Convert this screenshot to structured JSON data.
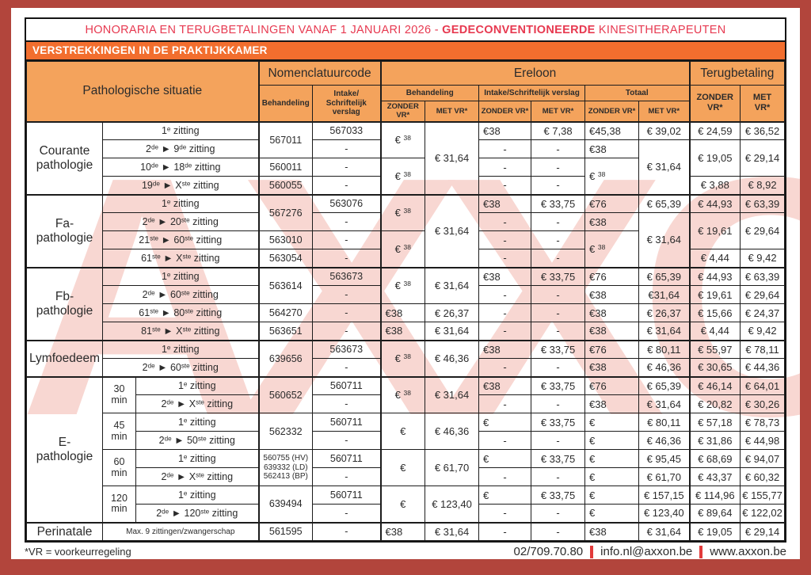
{
  "title": {
    "prefix": "HONORARIA EN TERUGBETALINGEN VANAF 1 JANUARI 2026 - ",
    "highlight": "GEDECONVENTIONEERDE",
    "suffix": " KINESITHERAPEUTEN"
  },
  "banner": "VERSTREKKINGEN IN DE PRAKTIJKKAMER",
  "watermark": "AXXON",
  "colors": {
    "frame_red": "#b2453c",
    "title_red": "#e73950",
    "banner_orange": "#f26e2e",
    "header_orange": "#f4a35c",
    "separator_red": "#e23a3a",
    "watermark_pink": "#f8d7d2"
  },
  "header": {
    "pathologie": "Pathologische situatie",
    "nomenclatuurcode": "Nomenclatuurcode",
    "ereloon": "Ereloon",
    "terugbetaling": "Terugbetaling",
    "behandeling": "Behandeling",
    "intake_two_line": "Intake/\nSchriftelijk verslag",
    "intake_one_line": "Intake/Schriftelijk verslag",
    "totaal": "Totaal",
    "zonder_vr": "ZONDER VR*",
    "met_vr": "MET VR*",
    "zonder_vr_stack": "ZONDER\nVR*",
    "met_vr_stack": "MET\nVR*"
  },
  "sections": [
    {
      "name": "Courante pathologie",
      "rows": [
        [
          {
            "t": "Courante\npathologie",
            "rs": 4,
            "cls": "group"
          },
          {
            "t": "1{e} zitting",
            "cs": 2,
            "cls": "zit"
          },
          {
            "t": "567011",
            "rs": 2,
            "cls": "code"
          },
          {
            "t": "567033",
            "cls": "code"
          },
          {
            "t": "€ {38}",
            "rs": 2
          },
          {
            "t": "€ 31,64",
            "rs": 4
          },
          {
            "t": "€38",
            "a": "l"
          },
          {
            "t": "€ 7,38"
          },
          {
            "t": "€45,38",
            "a": "l"
          },
          {
            "t": "€ 39,02"
          },
          {
            "t": "€ 24,59"
          },
          {
            "t": "€ 36,52"
          }
        ],
        [
          {
            "t": "2{de} ► 9{de} zitting",
            "cs": 2,
            "cls": "zit"
          },
          {
            "t": "-",
            "cls": "code"
          },
          {
            "t": "-"
          },
          {
            "t": "-"
          },
          {
            "t": "€38",
            "a": "l"
          },
          {
            "t": "€ 31,64",
            "rs": 3
          },
          {
            "t": "€ 19,05",
            "rs": 2
          },
          {
            "t": "€ 29,14",
            "rs": 2
          }
        ],
        [
          {
            "t": "10{de} ► 18{de} zitting",
            "cs": 2,
            "cls": "zit"
          },
          {
            "t": "560011",
            "cls": "code"
          },
          {
            "t": "-",
            "cls": "code"
          },
          {
            "t": "€ {38}",
            "rs": 2
          },
          {
            "t": "-"
          },
          {
            "t": "-"
          },
          {
            "t": "€ {38}",
            "rs": 2,
            "a": "l"
          }
        ],
        [
          {
            "t": "19{de} ► X{ste} zitting",
            "cs": 2,
            "cls": "zit"
          },
          {
            "t": "560055",
            "cls": "code"
          },
          {
            "t": "-",
            "cls": "code"
          },
          {
            "t": "-"
          },
          {
            "t": "-"
          },
          {
            "t": "€ 3,88"
          },
          {
            "t": "€ 8,92"
          }
        ]
      ]
    },
    {
      "name": "Fa-pathologie",
      "rows": [
        [
          {
            "t": "Fa-\npathologie",
            "rs": 4,
            "cls": "group"
          },
          {
            "t": "1{e} zitting",
            "cs": 2,
            "cls": "zit"
          },
          {
            "t": "567276",
            "rs": 2,
            "cls": "code"
          },
          {
            "t": "563076",
            "cls": "code"
          },
          {
            "t": "€ {38}",
            "rs": 2
          },
          {
            "t": "€ 31,64",
            "rs": 4
          },
          {
            "t": "€38",
            "a": "l"
          },
          {
            "t": "€ 33,75"
          },
          {
            "t": "€76",
            "a": "l"
          },
          {
            "t": "€ 65,39"
          },
          {
            "t": "€ 44,93"
          },
          {
            "t": "€ 63,39"
          }
        ],
        [
          {
            "t": "2{de} ► 20{ste} zitting",
            "cs": 2,
            "cls": "zit"
          },
          {
            "t": "-",
            "cls": "code"
          },
          {
            "t": "-"
          },
          {
            "t": "-"
          },
          {
            "t": "€38",
            "a": "l"
          },
          {
            "t": "€ 31,64",
            "rs": 3
          },
          {
            "t": "€ 19,61",
            "rs": 2
          },
          {
            "t": "€ 29,64",
            "rs": 2
          }
        ],
        [
          {
            "t": "21{ste} ► 60{ste} zitting",
            "cs": 2,
            "cls": "zit"
          },
          {
            "t": "563010",
            "cls": "code"
          },
          {
            "t": "-",
            "cls": "code"
          },
          {
            "t": "€ {38}",
            "rs": 2
          },
          {
            "t": "-"
          },
          {
            "t": "-"
          },
          {
            "t": "€ {38}",
            "rs": 2,
            "a": "l"
          }
        ],
        [
          {
            "t": "61{ste} ► X{ste} zitting",
            "cs": 2,
            "cls": "zit"
          },
          {
            "t": "563054",
            "cls": "code"
          },
          {
            "t": "-",
            "cls": "code"
          },
          {
            "t": "-"
          },
          {
            "t": "-"
          },
          {
            "t": "€ 4,44"
          },
          {
            "t": "€ 9,42"
          }
        ]
      ]
    },
    {
      "name": "Fb-pathologie",
      "rows": [
        [
          {
            "t": "Fb-\npathologie",
            "rs": 4,
            "cls": "group"
          },
          {
            "t": "1{e} zitting",
            "cs": 2,
            "cls": "zit"
          },
          {
            "t": "563614",
            "rs": 2,
            "cls": "code"
          },
          {
            "t": "563673",
            "cls": "code"
          },
          {
            "t": "€ {38}",
            "rs": 2
          },
          {
            "t": "€ 31,64",
            "rs": 2
          },
          {
            "t": "€38",
            "a": "l"
          },
          {
            "t": "€ 33,75"
          },
          {
            "t": "€76",
            "a": "l"
          },
          {
            "t": "€ 65,39"
          },
          {
            "t": "€ 44,93"
          },
          {
            "t": "€ 63,39"
          }
        ],
        [
          {
            "t": "2{de} ► 60{ste} zitting",
            "cs": 2,
            "cls": "zit"
          },
          {
            "t": "-",
            "cls": "code"
          },
          {
            "t": "-"
          },
          {
            "t": "-"
          },
          {
            "t": "€38",
            "a": "l"
          },
          {
            "t": "€31,64"
          },
          {
            "t": "€ 19,61"
          },
          {
            "t": "€ 29,64"
          }
        ],
        [
          {
            "t": "61{ste} ► 80{ste} zitting",
            "cs": 2,
            "cls": "zit"
          },
          {
            "t": "564270",
            "cls": "code"
          },
          {
            "t": "-",
            "cls": "code"
          },
          {
            "t": "€38",
            "a": "l"
          },
          {
            "t": "€ 26,37"
          },
          {
            "t": "-"
          },
          {
            "t": "-"
          },
          {
            "t": "€38",
            "a": "l"
          },
          {
            "t": "€ 26,37"
          },
          {
            "t": "€ 15,66"
          },
          {
            "t": "€ 24,37"
          }
        ],
        [
          {
            "t": "81{ste} ► X{ste} zitting",
            "cs": 2,
            "cls": "zit"
          },
          {
            "t": "563651",
            "cls": "code"
          },
          {
            "t": "-",
            "cls": "code"
          },
          {
            "t": "€38",
            "a": "l"
          },
          {
            "t": "€ 31,64"
          },
          {
            "t": "-"
          },
          {
            "t": "-"
          },
          {
            "t": "€38",
            "a": "l"
          },
          {
            "t": "€ 31,64"
          },
          {
            "t": "€ 4,44"
          },
          {
            "t": "€ 9,42"
          }
        ]
      ]
    },
    {
      "name": "Lymfoedeem",
      "rows": [
        [
          {
            "t": "Lymfoedeem",
            "rs": 2,
            "cls": "group"
          },
          {
            "t": "1{e} zitting",
            "cs": 2,
            "cls": "zit"
          },
          {
            "t": "639656",
            "rs": 2,
            "cls": "code"
          },
          {
            "t": "563673",
            "cls": "code"
          },
          {
            "t": "€ {38}",
            "rs": 2
          },
          {
            "t": "€ 46,36",
            "rs": 2
          },
          {
            "t": "€38",
            "a": "l"
          },
          {
            "t": "€ 33,75"
          },
          {
            "t": "€76",
            "a": "l"
          },
          {
            "t": "€ 80,11"
          },
          {
            "t": "€ 55,97"
          },
          {
            "t": "€ 78,11"
          }
        ],
        [
          {
            "t": "2{de} ► 60{ste} zitting",
            "cs": 2,
            "cls": "zit"
          },
          {
            "t": "-",
            "cls": "code"
          },
          {
            "t": "-"
          },
          {
            "t": "-"
          },
          {
            "t": "€38",
            "a": "l"
          },
          {
            "t": "€ 46,36"
          },
          {
            "t": "€ 30,65"
          },
          {
            "t": "€ 44,36"
          }
        ]
      ]
    },
    {
      "name": "E-pathologie",
      "rows": [
        [
          {
            "t": "E-\npathologie",
            "rs": 8,
            "cls": "group"
          },
          {
            "t": "30\nmin",
            "rs": 2,
            "cls": "min"
          },
          {
            "t": "1{e} zitting",
            "cls": "zit"
          },
          {
            "t": "560652",
            "rs": 2,
            "cls": "code"
          },
          {
            "t": "560711",
            "cls": "code"
          },
          {
            "t": "€ {38}",
            "rs": 2
          },
          {
            "t": "€ 31,64",
            "rs": 2
          },
          {
            "t": "€38",
            "a": "l"
          },
          {
            "t": "€ 33,75"
          },
          {
            "t": "€76",
            "a": "l"
          },
          {
            "t": "€ 65,39"
          },
          {
            "t": "€ 46,14"
          },
          {
            "t": "€ 64,01"
          }
        ],
        [
          {
            "t": "2{de} ► X{ste} zitting",
            "cls": "zit"
          },
          {
            "t": "-",
            "cls": "code"
          },
          {
            "t": "-"
          },
          {
            "t": "-"
          },
          {
            "t": "€38",
            "a": "l"
          },
          {
            "t": "€ 31,64"
          },
          {
            "t": "€ 20,82"
          },
          {
            "t": "€ 30,26"
          }
        ],
        [
          {
            "t": "45\nmin",
            "rs": 2,
            "cls": "min"
          },
          {
            "t": "1{e} zitting",
            "cls": "zit"
          },
          {
            "t": "562332",
            "rs": 2,
            "cls": "code"
          },
          {
            "t": "560711",
            "cls": "code"
          },
          {
            "t": "€",
            "rs": 2
          },
          {
            "t": "€ 46,36",
            "rs": 2
          },
          {
            "t": "€",
            "a": "l"
          },
          {
            "t": "€ 33,75"
          },
          {
            "t": "€",
            "a": "l"
          },
          {
            "t": "€ 80,11"
          },
          {
            "t": "€ 57,18"
          },
          {
            "t": "€ 78,73"
          }
        ],
        [
          {
            "t": "2{de} ► 50{ste} zitting",
            "cls": "zit"
          },
          {
            "t": "-",
            "cls": "code"
          },
          {
            "t": "-"
          },
          {
            "t": "-"
          },
          {
            "t": "€",
            "a": "l"
          },
          {
            "t": "€ 46,36"
          },
          {
            "t": "€ 31,86"
          },
          {
            "t": "€ 44,98"
          }
        ],
        [
          {
            "t": "60\nmin",
            "rs": 2,
            "cls": "min"
          },
          {
            "t": "1{e} zitting",
            "cls": "zit"
          },
          {
            "t": "560755 (HV)\n639332 (LD)\n562413 (BP)",
            "rs": 2,
            "cls": "code-sm"
          },
          {
            "t": "560711",
            "cls": "code"
          },
          {
            "t": "€",
            "rs": 2
          },
          {
            "t": "€ 61,70",
            "rs": 2
          },
          {
            "t": "€",
            "a": "l"
          },
          {
            "t": "€ 33,75"
          },
          {
            "t": "€",
            "a": "l"
          },
          {
            "t": "€ 95,45"
          },
          {
            "t": "€ 68,69"
          },
          {
            "t": "€ 94,07"
          }
        ],
        [
          {
            "t": "2{de} ► X{ste} zitting",
            "cls": "zit"
          },
          {
            "t": "-",
            "cls": "code"
          },
          {
            "t": "-"
          },
          {
            "t": "-"
          },
          {
            "t": "€",
            "a": "l"
          },
          {
            "t": "€ 61,70"
          },
          {
            "t": "€ 43,37"
          },
          {
            "t": "€ 60,32"
          }
        ],
        [
          {
            "t": "120\nmin",
            "rs": 2,
            "cls": "min"
          },
          {
            "t": "1{e} zitting",
            "cls": "zit"
          },
          {
            "t": "639494",
            "rs": 2,
            "cls": "code"
          },
          {
            "t": "560711",
            "cls": "code"
          },
          {
            "t": "€",
            "rs": 2
          },
          {
            "t": "€ 123,40",
            "rs": 2
          },
          {
            "t": "€",
            "a": "l"
          },
          {
            "t": "€ 33,75"
          },
          {
            "t": "€",
            "a": "l"
          },
          {
            "t": "€ 157,15"
          },
          {
            "t": "€ 114,96"
          },
          {
            "t": "€ 155,77"
          }
        ],
        [
          {
            "t": "2{de} ► 120{ste} zitting",
            "cls": "zit"
          },
          {
            "t": "-",
            "cls": "code"
          },
          {
            "t": "-"
          },
          {
            "t": "-"
          },
          {
            "t": "€",
            "a": "l"
          },
          {
            "t": "€ 123,40"
          },
          {
            "t": "€ 89,64"
          },
          {
            "t": "€ 122,02"
          }
        ]
      ]
    },
    {
      "name": "Perinatale",
      "rows": [
        [
          {
            "t": "Perinatale",
            "cls": "group"
          },
          {
            "t": "Max. 9 zittingen/zwangerschap",
            "cs": 2,
            "cls": "zit-sm"
          },
          {
            "t": "561595",
            "cls": "code"
          },
          {
            "t": "-",
            "cls": "code"
          },
          {
            "t": "€38",
            "a": "l"
          },
          {
            "t": "€ 31,64"
          },
          {
            "t": "-"
          },
          {
            "t": "-"
          },
          {
            "t": "€38",
            "a": "l"
          },
          {
            "t": "€ 31,64"
          },
          {
            "t": "€ 19,05"
          },
          {
            "t": "€ 29,14"
          }
        ]
      ]
    }
  ],
  "footer": {
    "note": "*VR = voorkeurregeling",
    "phone": "02/709.70.80",
    "email": "info.nl@axxon.be",
    "website": "www.axxon.be"
  }
}
